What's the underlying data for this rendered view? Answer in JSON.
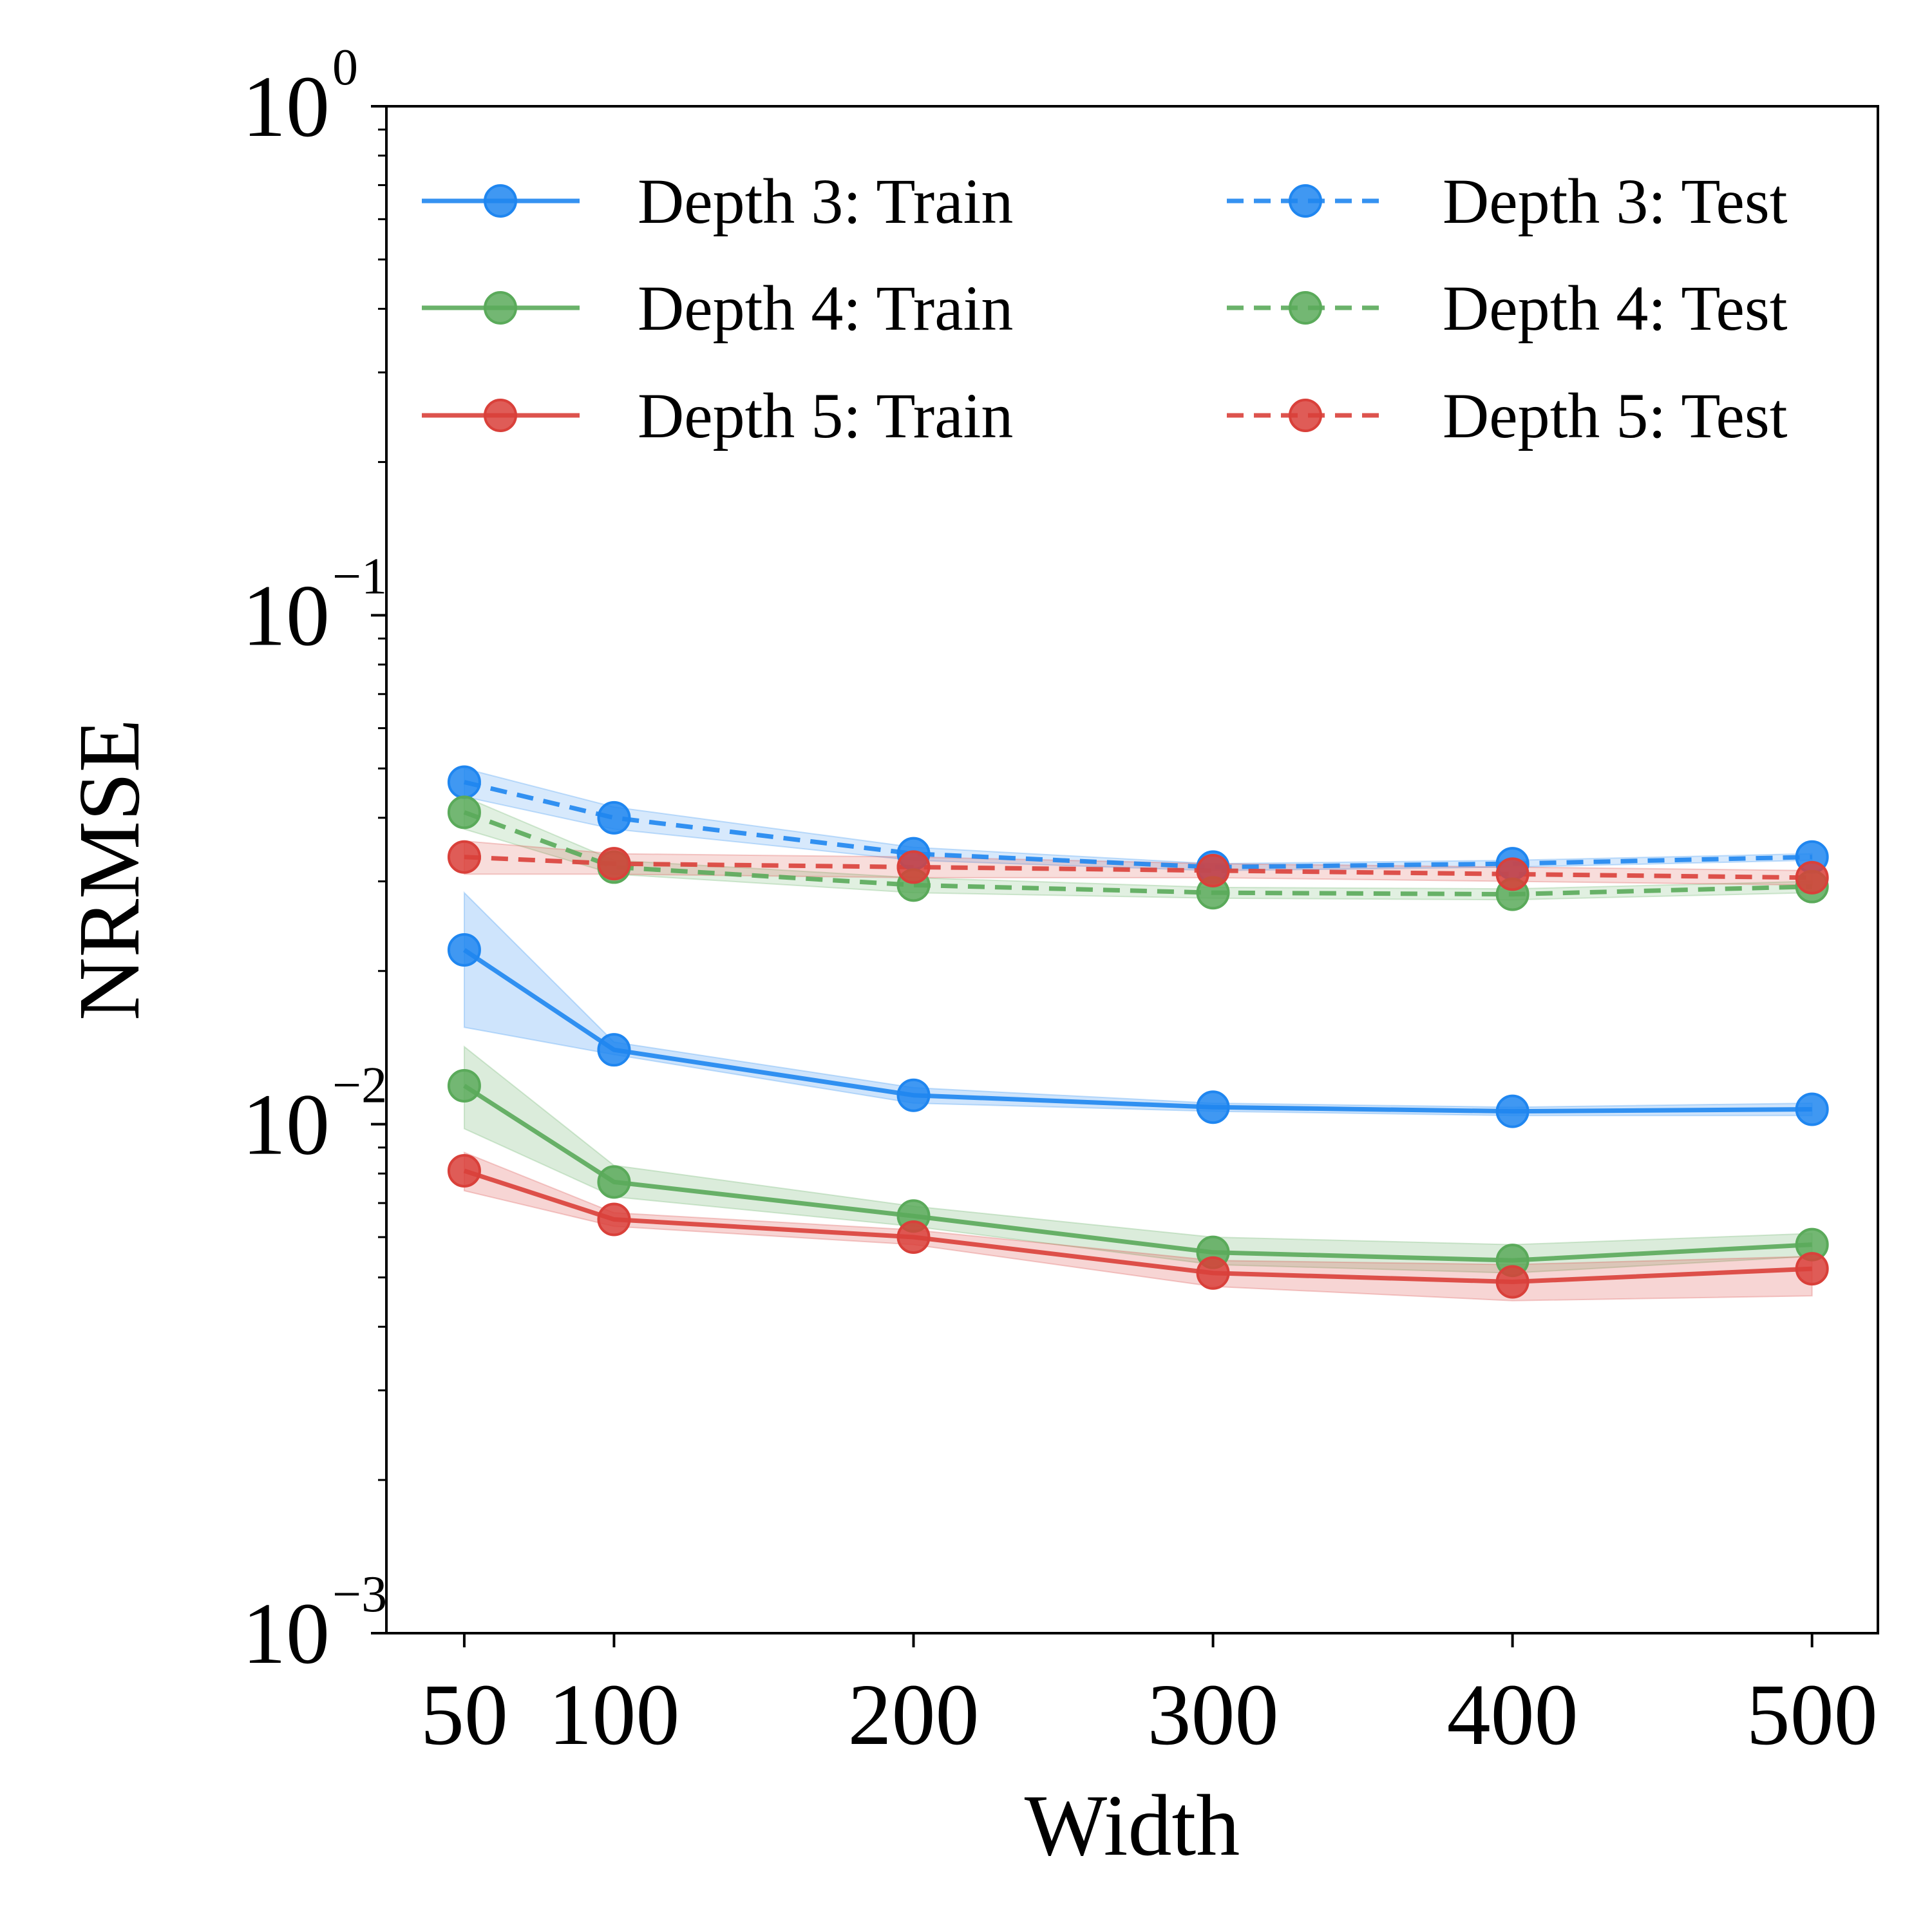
{
  "chart_data": {
    "type": "line",
    "xlabel": "Width",
    "ylabel": "NRMSE",
    "yscale": "log",
    "ylim": [
      0.001,
      1
    ],
    "x": [
      50,
      100,
      200,
      300,
      400,
      500
    ],
    "xticks": [
      "50",
      "100",
      "200",
      "300",
      "400",
      "500"
    ],
    "yticks": [
      {
        "value": 1,
        "base": "10",
        "exp": "0"
      },
      {
        "value": 0.1,
        "base": "10",
        "exp": "−1"
      },
      {
        "value": 0.01,
        "base": "10",
        "exp": "−2"
      },
      {
        "value": 0.001,
        "base": "10",
        "exp": "−3"
      }
    ],
    "legend_position": "top",
    "series": [
      {
        "name": "Depth 3: Train",
        "color": "#1f86f0",
        "style": "solid",
        "values": [
          0.022,
          0.014,
          0.0114,
          0.0108,
          0.0106,
          0.0107
        ],
        "lower": [
          0.0155,
          0.0137,
          0.011,
          0.0106,
          0.0104,
          0.0104
        ],
        "upper": [
          0.0285,
          0.0145,
          0.0118,
          0.011,
          0.0108,
          0.011
        ]
      },
      {
        "name": "Depth 4: Train",
        "color": "#5aaa5a",
        "style": "solid",
        "values": [
          0.0119,
          0.0077,
          0.0066,
          0.0056,
          0.0054,
          0.0058
        ],
        "lower": [
          0.0098,
          0.0072,
          0.0063,
          0.0053,
          0.0051,
          0.0055
        ],
        "upper": [
          0.0142,
          0.0083,
          0.0069,
          0.006,
          0.0058,
          0.0061
        ]
      },
      {
        "name": "Depth 5: Train",
        "color": "#d9403a",
        "style": "solid",
        "values": [
          0.0081,
          0.0065,
          0.006,
          0.0051,
          0.0049,
          0.0052
        ],
        "lower": [
          0.0074,
          0.0063,
          0.0058,
          0.0048,
          0.0045,
          0.0046
        ],
        "upper": [
          0.0088,
          0.0067,
          0.0062,
          0.0054,
          0.0053,
          0.0055
        ]
      },
      {
        "name": "Depth 3: Test",
        "color": "#1f86f0",
        "style": "dashed",
        "values": [
          0.047,
          0.04,
          0.034,
          0.032,
          0.0325,
          0.0335
        ],
        "lower": [
          0.044,
          0.038,
          0.033,
          0.0315,
          0.032,
          0.033
        ],
        "upper": [
          0.05,
          0.042,
          0.035,
          0.0325,
          0.033,
          0.034
        ]
      },
      {
        "name": "Depth 4: Test",
        "color": "#5aaa5a",
        "style": "dashed",
        "values": [
          0.041,
          0.032,
          0.0295,
          0.0285,
          0.0283,
          0.0293
        ],
        "lower": [
          0.038,
          0.031,
          0.0285,
          0.0278,
          0.0276,
          0.0285
        ],
        "upper": [
          0.044,
          0.033,
          0.0305,
          0.0292,
          0.029,
          0.03
        ]
      },
      {
        "name": "Depth 5: Test",
        "color": "#d9403a",
        "style": "dashed",
        "values": [
          0.0335,
          0.0325,
          0.032,
          0.0315,
          0.031,
          0.0305
        ],
        "lower": [
          0.031,
          0.031,
          0.0305,
          0.0305,
          0.03,
          0.0295
        ],
        "upper": [
          0.036,
          0.034,
          0.0335,
          0.0325,
          0.032,
          0.0315
        ]
      }
    ]
  }
}
